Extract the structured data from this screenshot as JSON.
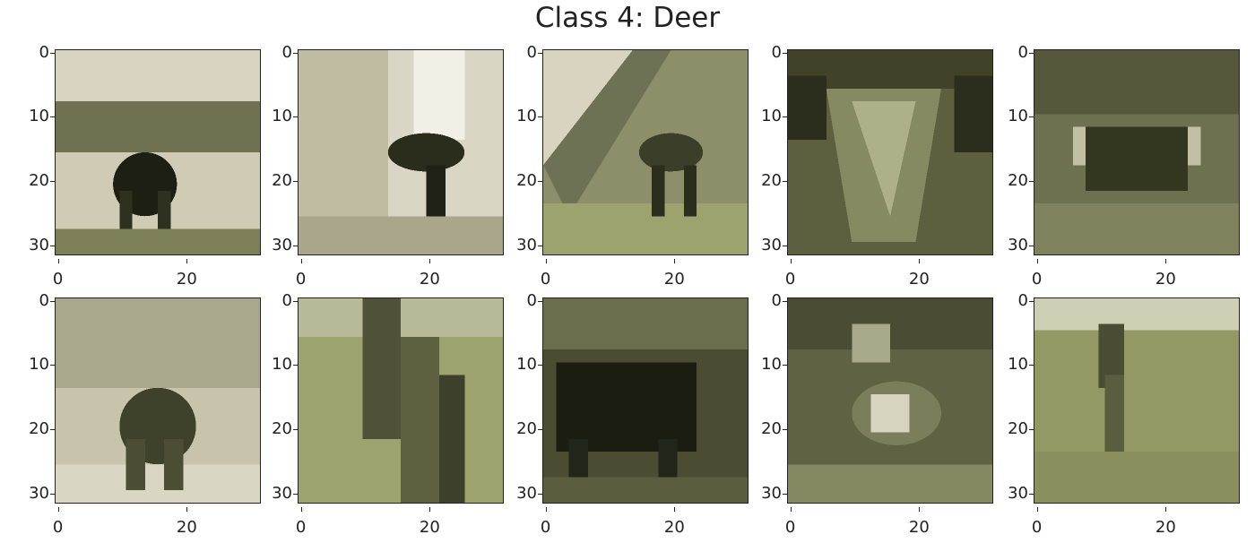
{
  "figure": {
    "title": "Class 4: Deer"
  },
  "axes": {
    "y_ticks": [
      "0",
      "10",
      "20",
      "30"
    ],
    "x_ticks": [
      "0",
      "20"
    ]
  },
  "palette": {
    "light_sky": "#e3e1d2",
    "pale": "#cfcdb8",
    "olive": "#8e9066",
    "grass": "#9ea36e",
    "dark_olive": "#4c4f34",
    "shadow": "#1c1f12",
    "mid": "#6d7150"
  }
}
